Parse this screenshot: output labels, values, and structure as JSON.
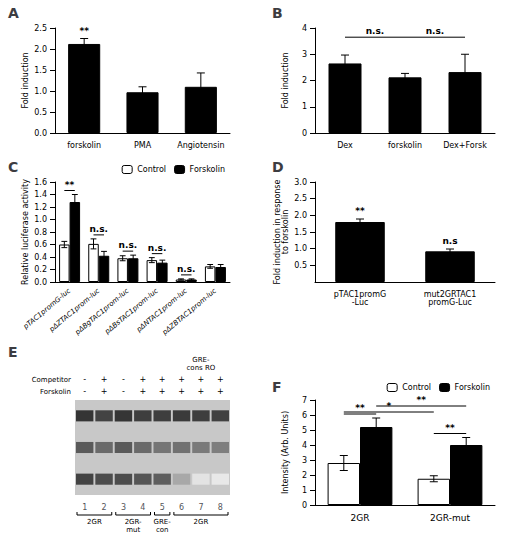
{
  "chart_data": [
    {
      "type": "bar",
      "title": "A",
      "categories": [
        "forskolin",
        "PMA",
        "Angiotensin"
      ],
      "values": [
        2.12,
        0.97,
        1.1
      ],
      "errors": [
        0.13,
        0.13,
        0.33
      ],
      "color": "#000000",
      "ylabel": "Fold induction",
      "ylim": [
        0,
        2.5
      ],
      "yticks": [
        {
          "value": 0,
          "label": "0.0"
        },
        0.5,
        {
          "value": 1,
          "label": "1.0"
        },
        1.5,
        {
          "value": 2,
          "label": "2.0"
        },
        2.5
      ],
      "grid": false,
      "annotations": [
        {
          "text": "**",
          "category": "forskolin"
        }
      ]
    },
    {
      "type": "bar",
      "title": "B",
      "categories": [
        "Dex",
        "forskolin",
        "Dex+Forsk"
      ],
      "values": [
        2.65,
        2.12,
        2.32
      ],
      "errors": [
        0.32,
        0.15,
        0.68
      ],
      "color": "#000000",
      "ylabel": "Fold induction",
      "ylim": [
        0,
        4
      ],
      "yticks": [
        0,
        1,
        2,
        3,
        4
      ],
      "grid": false,
      "annotations": [
        {
          "text": "n.s.",
          "from": "Dex",
          "to": "forskolin",
          "y": 3.65
        },
        {
          "text": "n.s.",
          "from": "forskolin",
          "to": "Dex+Forsk",
          "y": 3.65
        }
      ]
    },
    {
      "type": "bar",
      "title": "C",
      "categories": [
        "pTAC1promG-luc",
        "pΔZTAC1prom-luc",
        "pΔBgTAC1prom-luc",
        "pΔBsTAC1prom-luc",
        "pΔNTAC1prom-luc",
        "pΔZBTAC1prom-luc"
      ],
      "series": [
        {
          "name": "Control",
          "color": "#ffffff",
          "values": [
            0.6,
            0.61,
            0.38,
            0.35,
            0.04,
            0.25
          ],
          "errors": [
            0.05,
            0.08,
            0.04,
            0.04,
            0.01,
            0.03
          ]
        },
        {
          "name": "Forskolin",
          "color": "#000000",
          "values": [
            1.28,
            0.42,
            0.38,
            0.31,
            0.04,
            0.24
          ],
          "errors": [
            0.12,
            0.07,
            0.05,
            0.04,
            0.01,
            0.04
          ]
        }
      ],
      "ylabel": "Relative luciferase activity",
      "ylim": [
        0,
        1.6
      ],
      "yticks": [
        {
          "value": 0,
          "label": "0.0"
        },
        0.2,
        0.4,
        0.6,
        0.8,
        {
          "value": 1,
          "label": "1.0"
        },
        1.2,
        1.4,
        1.6
      ],
      "grid": false,
      "legend": "upper right",
      "annotations": [
        {
          "text": "**",
          "category": "pTAC1promG-luc"
        },
        {
          "text": "n.s.",
          "category": "pΔZTAC1prom-luc"
        },
        {
          "text": "n.s.",
          "category": "pΔBgTAC1prom-luc"
        },
        {
          "text": "n.s.",
          "category": "pΔBsTAC1prom-luc"
        },
        {
          "text": "n.s.",
          "category": "pΔNTAC1prom-luc"
        }
      ]
    },
    {
      "type": "bar",
      "title": "D",
      "categories": [
        "pTAC1promG\n-Luc",
        "mut2GRTAC1\npromG-Luc"
      ],
      "values": [
        1.8,
        0.92
      ],
      "errors": [
        0.09,
        0.07
      ],
      "color": "#000000",
      "ylabel": "Fold induction in response\nto forskolin",
      "ylim": [
        0,
        3
      ],
      "yticks": [
        0.5,
        {
          "value": 1,
          "label": "1.0"
        },
        1.5,
        {
          "value": 2,
          "label": "2.0"
        },
        2.5,
        {
          "value": 3,
          "label": "3.0"
        }
      ],
      "grid": false,
      "annotations": [
        {
          "text": "**",
          "category": "pTAC1promG\n-Luc"
        },
        {
          "text": "n.s",
          "category": "mut2GRTAC1\npromG-Luc"
        }
      ]
    },
    {
      "type": "heatmap",
      "title": "E",
      "categories": [
        "1",
        "2",
        "3",
        "4",
        "5",
        "6",
        "7",
        "8"
      ],
      "cells": [
        [
          0.88,
          0.82,
          0.88,
          0.84,
          0.84,
          0.86,
          0.84,
          0.83
        ],
        [
          0.72,
          0.65,
          0.72,
          0.65,
          0.6,
          0.62,
          0.58,
          0.56
        ],
        [
          0.82,
          0.78,
          0.78,
          0.74,
          0.7,
          0.38,
          0.12,
          0.1
        ]
      ],
      "rows": [
        {
          "label": "Competitor",
          "values": [
            "-",
            "+",
            "-",
            "+",
            "+",
            "+",
            "+",
            "+"
          ]
        },
        {
          "label": "Forskolin",
          "values": [
            "-",
            "+",
            "-",
            "+",
            "+",
            "+",
            "+",
            "+"
          ]
        }
      ],
      "annotations": [
        {
          "text": "GRE-\ncons RO",
          "category": "7"
        }
      ],
      "groups": [
        {
          "label": "2GR",
          "from": "1",
          "to": "2"
        },
        {
          "label": "2GR-\nmut",
          "from": "3",
          "to": "4"
        },
        {
          "label": "GRE-\ncon",
          "from": "5",
          "to": "5"
        },
        {
          "label": "2GR",
          "from": "6",
          "to": "8"
        }
      ],
      "tick_labels": "x"
    },
    {
      "type": "bar",
      "title": "F",
      "categories": [
        "2GR",
        "2GR-mut"
      ],
      "series": [
        {
          "name": "Control",
          "color": "#ffffff",
          "values": [
            2.8,
            1.75
          ],
          "errors": [
            0.5,
            0.2
          ]
        },
        {
          "name": "Forskolin",
          "color": "#000000",
          "values": [
            5.2,
            4.0
          ],
          "errors": [
            0.6,
            0.5
          ]
        }
      ],
      "ylabel": "Intensity (Arb. Units)",
      "ylim": [
        0,
        7
      ],
      "yticks": [
        0,
        1,
        2,
        3,
        4,
        5,
        6,
        7
      ],
      "grid": false,
      "legend": "upper right",
      "annotations": [
        {
          "text": "**",
          "category": "2GR"
        },
        {
          "text": "**",
          "category": "2GR-mut"
        },
        {
          "text": "*",
          "from": "2GR",
          "to": "2GR-mut",
          "series": "Control",
          "y": 6.2
        },
        {
          "text": "**",
          "from": "2GR",
          "to": "2GR-mut",
          "series": "Forskolin",
          "y": 6.6
        }
      ]
    }
  ]
}
